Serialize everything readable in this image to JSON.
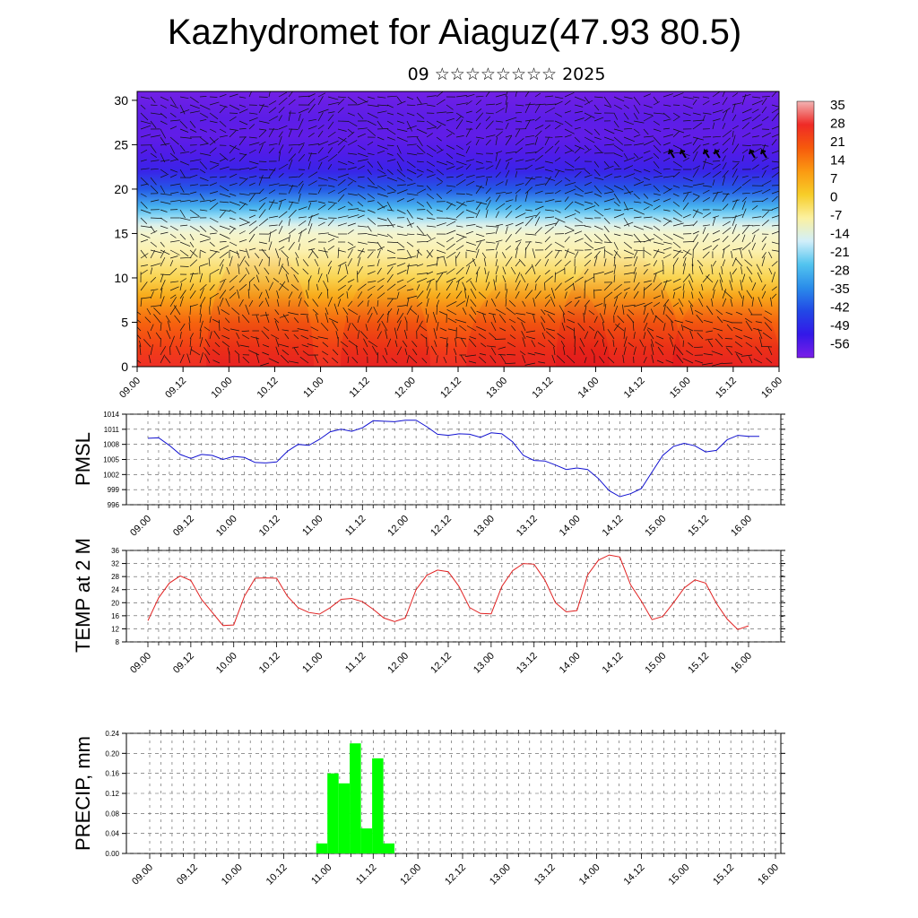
{
  "title": "Kazhydromet for Aiaguz(47.93 80.5)",
  "subtitle": "09 ☆☆☆☆☆☆☆☆ 2025",
  "colors": {
    "pmsl_line": "#1010d0",
    "temp_line": "#e02020",
    "precip_bar": "#00ff00",
    "grid": "#555555"
  },
  "chart_data": [
    {
      "type": "heatmap",
      "description_of_values": "vertical cross-section of temperature with wind vectors",
      "xticks": [
        "09.00",
        "09.12",
        "10.00",
        "10.12",
        "11.00",
        "11.12",
        "12.00",
        "12.12",
        "13.00",
        "13.12",
        "14.00",
        "14.12",
        "15.00",
        "15.12",
        "16.00"
      ],
      "ylim": [
        0,
        31
      ],
      "yticks": [
        0,
        5,
        10,
        15,
        20,
        25,
        30
      ],
      "colorbar_labels": [
        "35",
        "28",
        "21",
        "14",
        "7",
        "0",
        "-7",
        "-14",
        "-21",
        "-28",
        "-35",
        "-42",
        "-49",
        "-56"
      ],
      "colorbar_colors": [
        "#f2b4b4",
        "#ef2a26",
        "#f65a0c",
        "#fb9a12",
        "#f7cd28",
        "#fbf1a0",
        "#d2effa",
        "#52c4ef",
        "#2a8cea",
        "#2248e6",
        "#3318e8",
        "#7a1ee8"
      ],
      "temperature_profile": {
        "levels": [
          0,
          2,
          5,
          8,
          10,
          13,
          15,
          16,
          17,
          18,
          20,
          22,
          24,
          26,
          28,
          31
        ],
        "values": [
          28,
          24,
          18,
          10,
          4,
          -4,
          -8,
          -12,
          -18,
          -24,
          -35,
          -45,
          -50,
          -54,
          -53,
          -58
        ]
      }
    },
    {
      "type": "line",
      "ylabel": "PMSL",
      "ylim": [
        996,
        1014
      ],
      "yticks": [
        996,
        999,
        1002,
        1005,
        1008,
        1011,
        1014
      ],
      "xticks": [
        "09.00",
        "09.12",
        "10.00",
        "10.12",
        "11.00",
        "11.12",
        "12.00",
        "12.12",
        "13.00",
        "13.12",
        "14.00",
        "14.12",
        "15.00",
        "15.12",
        "16.00"
      ],
      "x_step_hours": 3,
      "series": [
        {
          "values": [
            1009.2,
            1009.3,
            1007.8,
            1006.0,
            1005.2,
            1006.0,
            1005.8,
            1005.0,
            1005.6,
            1005.4,
            1004.4,
            1004.3,
            1004.5,
            1006.6,
            1008.0,
            1007.8,
            1009.0,
            1010.5,
            1011.0,
            1010.6,
            1011.3,
            1012.7,
            1012.6,
            1012.5,
            1012.8,
            1012.8,
            1011.5,
            1010.0,
            1009.8,
            1010.1,
            1010.0,
            1009.4,
            1010.3,
            1010.1,
            1008.5,
            1005.8,
            1004.8,
            1004.7,
            1003.9,
            1003.0,
            1003.3,
            1003.0,
            1001.2,
            998.8,
            997.6,
            998.2,
            999.2,
            1002.5,
            1005.8,
            1007.6,
            1008.2,
            1007.7,
            1006.5,
            1006.8,
            1008.9,
            1009.8,
            1009.6,
            1009.6
          ]
        }
      ]
    },
    {
      "type": "line",
      "ylabel": "TEMP at 2 M",
      "ylim": [
        8,
        36
      ],
      "yticks": [
        8,
        12,
        16,
        20,
        24,
        28,
        32,
        36
      ],
      "xticks": [
        "09.00",
        "09.12",
        "10.00",
        "10.12",
        "11.00",
        "11.12",
        "12.00",
        "12.12",
        "13.00",
        "13.12",
        "14.00",
        "14.12",
        "15.00",
        "15.12",
        "16.00"
      ],
      "x_step_hours": 3,
      "series": [
        {
          "values": [
            14.5,
            21.5,
            26.0,
            28.2,
            26.8,
            21.0,
            17.0,
            13.0,
            13.2,
            22.0,
            27.5,
            27.6,
            27.5,
            22.0,
            18.5,
            17.0,
            16.5,
            18.5,
            21.0,
            21.3,
            20.3,
            18.0,
            15.3,
            14.2,
            15.3,
            24.0,
            28.4,
            30.0,
            29.5,
            25.0,
            18.5,
            16.7,
            16.6,
            25.0,
            29.8,
            32.0,
            31.8,
            27.0,
            20.0,
            17.2,
            17.6,
            28.5,
            33.0,
            34.6,
            34.0,
            25.5,
            20.5,
            14.8,
            15.8,
            20.0,
            24.5,
            27.0,
            26.0,
            19.8,
            15.0,
            11.8,
            12.9
          ]
        }
      ]
    },
    {
      "type": "bar",
      "ylabel": "PRECIP, mm",
      "ylim": [
        0,
        0.24
      ],
      "yticks": [
        "0.00",
        "0.04",
        "0.08",
        "0.12",
        "0.16",
        "0.20",
        "0.24"
      ],
      "xticks": [
        "09.00",
        "09.12",
        "10.00",
        "10.12",
        "11.00",
        "11.12",
        "12.00",
        "12.12",
        "13.00",
        "13.12",
        "14.00",
        "14.12",
        "15.00",
        "15.12",
        "16.00"
      ],
      "bar_hours": [
        45,
        48,
        51,
        54,
        57,
        60,
        63
      ],
      "values": [
        0.02,
        0.16,
        0.14,
        0.22,
        0.05,
        0.19,
        0.02
      ]
    }
  ]
}
